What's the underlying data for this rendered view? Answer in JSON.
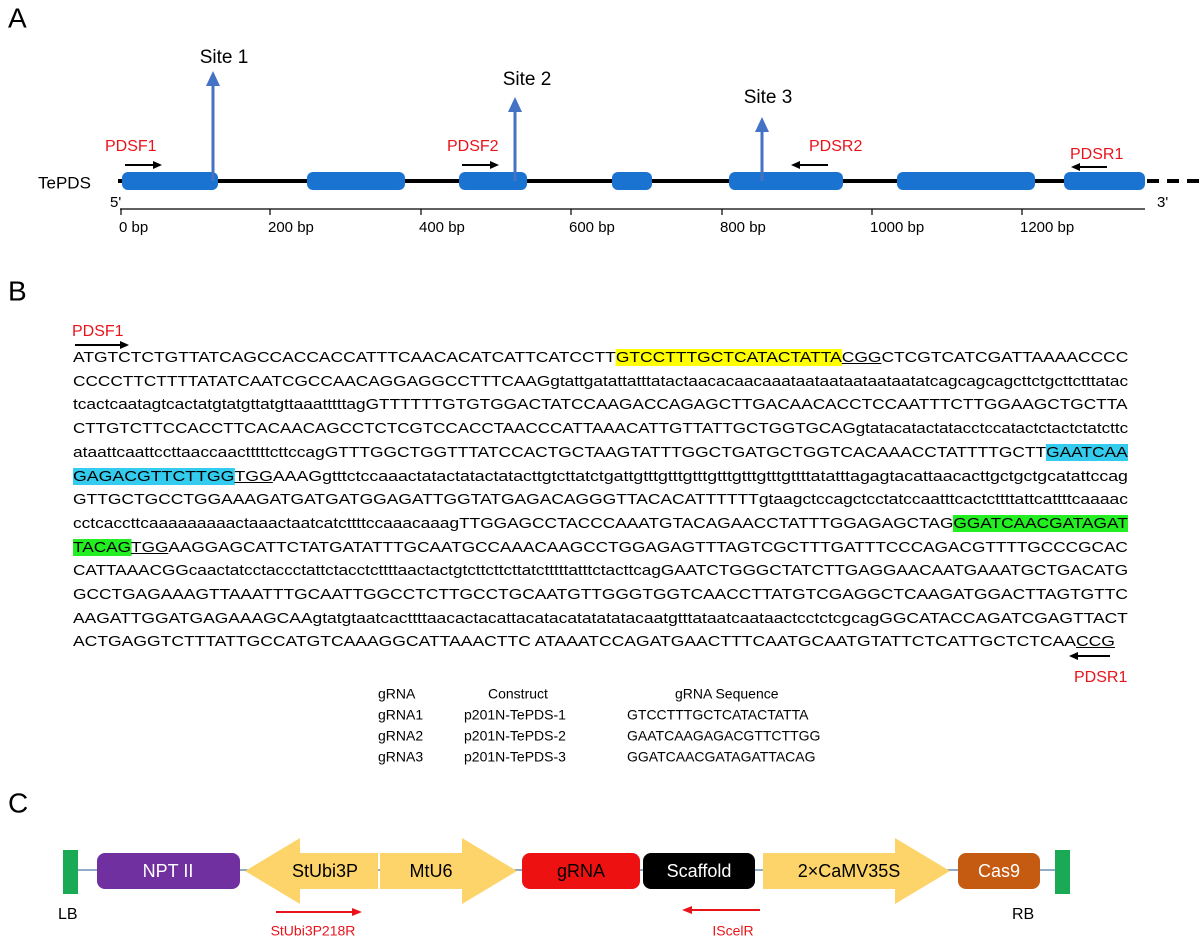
{
  "panel_a": {
    "label": "A",
    "gene": "TePDS",
    "five_prime": "5'",
    "three_prime": "3'",
    "sites": [
      "Site 1",
      "Site 2",
      "Site 3"
    ],
    "primers": [
      "PDSF1",
      "PDSF2",
      "PDSR2",
      "PDSR1"
    ],
    "scale": [
      "0 bp",
      "200 bp",
      "400 bp",
      "600 bp",
      "800 bp",
      "1000 bp",
      "1200 bp"
    ]
  },
  "panel_b": {
    "label": "B",
    "primer_forward": "PDSF1",
    "primer_reverse": "PDSR1",
    "sequence": [
      [
        {
          "text": "ATGTCTCTGTTATCAGCCACCACCATTTCAACACATCATTCATCCTT",
          "style": "plain"
        },
        {
          "text": "GTCCTTTGCTCATACTATTA",
          "style": "yellow"
        },
        {
          "text": "CGG",
          "style": "underline"
        },
        {
          "text": "CTCGTCATCGATTAAAACCCC",
          "style": "plain"
        }
      ],
      [
        {
          "text": "CCCCTTCTTTTATATCAATCGCCAACAGGAGGCCTTTCAAGgtattgatattatttatactaacacaacaaataataataataataatatcagcagcagcttctgcttctttatac",
          "style": "plain"
        }
      ],
      [
        {
          "text": "tcactcaatagtcactatgtatgttatgttaaatttttagGTTTTTTGTGTGGACTATCCAAGACCAGAGCTTGACAACACCTCCAATTTCTTGGAAGCTGCTTA",
          "style": "plain"
        }
      ],
      [
        {
          "text": "CTTGTCTTCCACCTTCACAACAGCCTCTCGTCCACCTAACCCATTAAACATTGTTATTGCTGGTGCAGgtatacatactatacctccatactctactctatcttc",
          "style": "plain"
        }
      ],
      [
        {
          "text": "ataattcaattccttaaccaactttttcttccagGTTTGGCTGGTTTATCCACTGCTAAGTATTTGGCTGATGCTGGTCACAAACCTATTTTGCTT",
          "style": "plain"
        },
        {
          "text": "GAATCAA",
          "style": "cyan"
        }
      ],
      [
        {
          "text": "GAGACGTTCTTGG",
          "style": "cyan"
        },
        {
          "text": "TGG",
          "style": "underline"
        },
        {
          "text": "AAAGgtttctccaaactatactatactatacttgtcttatctgattgtttgtttgtttgtttgtttgtttgttttatatttagagtacattaacacttgctgctgcatattccag",
          "style": "plain"
        }
      ],
      [
        {
          "text": "GTTGCTGCCTGGAAAGATGATGATGGAGATTGGTATGAGACAGGGTTACACATTTTTTgtaagctccagctcctatccaatttcactcttttattcattttcaaaac",
          "style": "plain"
        }
      ],
      [
        {
          "text": "cctcaccttcaaaaaaaaactaaactaatcatcttttccaaacaaagTTGGAGCCTACCCAAATGTACAGAACCTATTTGGAGAGCTAG",
          "style": "plain"
        },
        {
          "text": "GGATCAACGATAGAT",
          "style": "green"
        }
      ],
      [
        {
          "text": "TACAG",
          "style": "green"
        },
        {
          "text": "TGG",
          "style": "underline"
        },
        {
          "text": "AAGGAGCATTCTATGATATTTGCAATGCCAAACAAGCCTGGAGAGTTTAGTCGCTTTGATTTCCCAGACGTTTTGCCCGCAC",
          "style": "plain"
        }
      ],
      [
        {
          "text": "CATTAAACGGcaactatcctaccctattctacctcttttaactactgtcttcttcttatctttttatttctacttcagGAATCTGGGCTATCTTGAGGAACAATGAAATGCTGACATG",
          "style": "plain"
        }
      ],
      [
        {
          "text": "GCCTGAGAAAGTTAAATTTGCAATTGGCCTCTTGCCTGCAATGTTGGGTGGTCAACCTTATGTCGAGGCTCAAGATGGACTTAGTGTTC",
          "style": "plain"
        }
      ],
      [
        {
          "text": "AAGATTGGATGAGAAAGCAAgtatgtaatcacttttaacactacattacatacatatatatacaatgtttataatcaataactcctctcgcagGGCATACCAGATCGAGTTACT",
          "style": "plain"
        }
      ],
      [
        {
          "text": "ACTGAGGTCTTTATTGCCATGTCAAAGGCATTAAACTTC ATAAATCCAGATGAACTTTCAATGCAATGTATTCTCATTGCTCTCAA",
          "style": "plain"
        },
        {
          "text": "CCG",
          "style": "underline"
        }
      ]
    ],
    "table": {
      "header": [
        "gRNA",
        "Construct",
        "gRNA Sequence"
      ],
      "rows": [
        [
          "gRNA1",
          "p201N-TePDS-1",
          "GTCCTTTGCTCATACTATTA"
        ],
        [
          "gRNA2",
          "p201N-TePDS-2",
          "GAATCAAGAGACGTTCTTGG"
        ],
        [
          "gRNA3",
          "p201N-TePDS-3",
          "GGATCAACGATAGATTACAG"
        ]
      ]
    }
  },
  "panel_c": {
    "label": "C",
    "left_border": "LB",
    "right_border": "RB",
    "elements": [
      "NPT II",
      "StUbi3P",
      "MtU6",
      "gRNA",
      "Scaffold",
      "2×CaMV35S",
      "Cas9"
    ],
    "primers": [
      "StUbi3P218R",
      "IScelR"
    ]
  }
}
